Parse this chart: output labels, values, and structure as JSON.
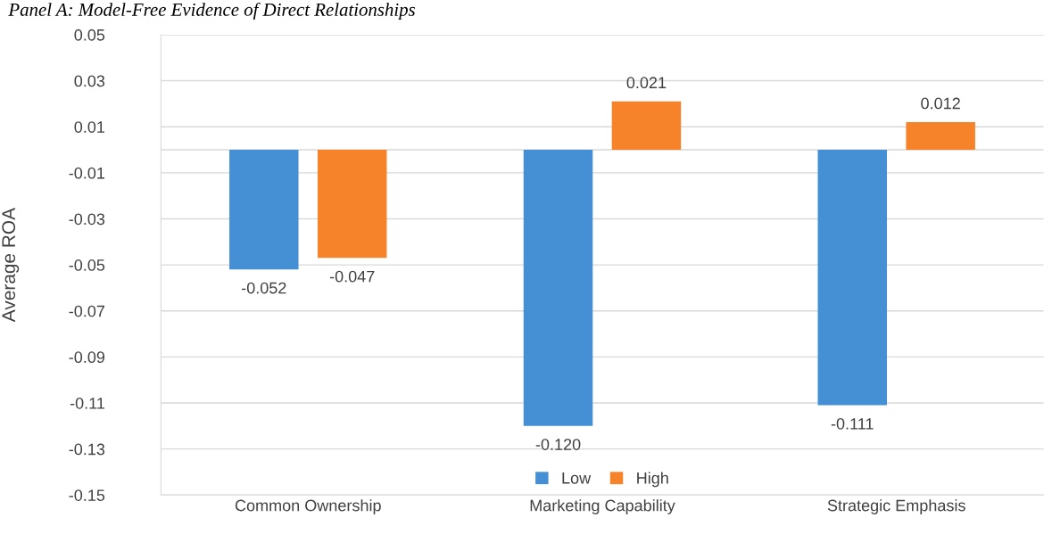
{
  "chart_data": {
    "type": "bar",
    "title": "Panel A: Model-Free Evidence of Direct Relationships",
    "ylabel": "Average ROA",
    "categories": [
      "Common Ownership",
      "Marketing Capability",
      "Strategic Emphasis"
    ],
    "series": [
      {
        "name": "Low",
        "color": "#4590d4",
        "values": [
          -0.052,
          -0.12,
          -0.111
        ],
        "value_labels": [
          "-0.052",
          "-0.120",
          "-0.111"
        ]
      },
      {
        "name": "High",
        "color": "#f6822a",
        "values": [
          -0.047,
          0.021,
          0.012
        ],
        "value_labels": [
          "-0.047",
          "0.021",
          "0.012"
        ]
      }
    ],
    "ylim": [
      -0.15,
      0.05
    ],
    "yticks": [
      -0.15,
      -0.13,
      -0.11,
      -0.09,
      -0.07,
      -0.05,
      -0.03,
      -0.01,
      0.01,
      0.03,
      0.05
    ],
    "grid": "y",
    "legend": "bottom"
  }
}
